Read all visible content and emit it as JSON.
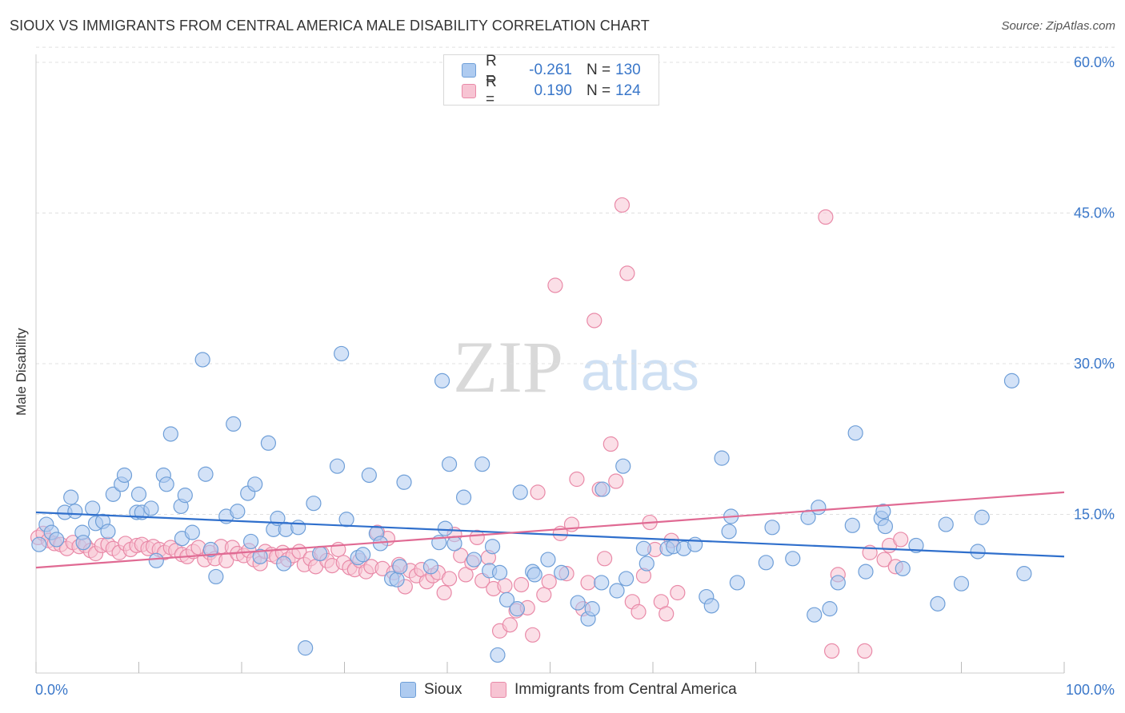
{
  "title": "SIOUX VS IMMIGRANTS FROM CENTRAL AMERICA MALE DISABILITY CORRELATION CHART",
  "source": "Source: ZipAtlas.com",
  "watermark": {
    "zip": "ZIP",
    "atlas": "atlas"
  },
  "legend": {
    "rows": [
      {
        "r_label": "R =",
        "r_value": "-0.261",
        "n_label": "N =",
        "n_value": "130"
      },
      {
        "r_label": "R =",
        "r_value": "0.190",
        "n_label": "N =",
        "n_value": "124"
      }
    ]
  },
  "bottom_legend": {
    "sioux": "Sioux",
    "immigrants": "Immigrants from Central America"
  },
  "colors": {
    "sioux_fill": "#aecbf0",
    "sioux_stroke": "#6f9fd8",
    "sioux_line": "#2f6fcc",
    "imm_fill": "#f7c4d3",
    "imm_stroke": "#e98aa8",
    "imm_line": "#e06a93",
    "tick_label": "#3a77c9",
    "grid": "#e0e0e0"
  },
  "chart_data": {
    "type": "scatter",
    "title": "SIOUX VS IMMIGRANTS FROM CENTRAL AMERICA MALE DISABILITY CORRELATION CHART",
    "xlabel": "",
    "ylabel": "Male Disability",
    "xlim": [
      0,
      100
    ],
    "ylim": [
      0,
      60
    ],
    "x_tick_labels": [
      "0.0%",
      "100.0%"
    ],
    "y_ticks": [
      15,
      30,
      45,
      60
    ],
    "y_tick_labels": [
      "15.0%",
      "30.0%",
      "45.0%",
      "60.0%"
    ],
    "grid": true,
    "legend_position": "top-center",
    "series": [
      {
        "name": "Sioux",
        "r": -0.261,
        "n": 130,
        "trend": [
          [
            0,
            15.2
          ],
          [
            100,
            10.8
          ]
        ],
        "points": [
          [
            0.3,
            12.0
          ],
          [
            1,
            14
          ],
          [
            1.5,
            13.2
          ],
          [
            2,
            12.5
          ],
          [
            2.8,
            15.2
          ],
          [
            3.4,
            16.7
          ],
          [
            3.8,
            15.3
          ],
          [
            4.5,
            13.2
          ],
          [
            4.6,
            12.2
          ],
          [
            5.5,
            15.6
          ],
          [
            5.8,
            14.1
          ],
          [
            6.5,
            14.3
          ],
          [
            7,
            13.3
          ],
          [
            7.5,
            17.0
          ],
          [
            8.3,
            18.0
          ],
          [
            8.6,
            18.9
          ],
          [
            9.8,
            15.2
          ],
          [
            10,
            17.0
          ],
          [
            10.3,
            15.2
          ],
          [
            11.2,
            15.6
          ],
          [
            11.7,
            10.4
          ],
          [
            12.4,
            18.9
          ],
          [
            12.7,
            18.0
          ],
          [
            13.1,
            23.0
          ],
          [
            14.1,
            15.8
          ],
          [
            14.5,
            16.9
          ],
          [
            14.2,
            12.6
          ],
          [
            15.2,
            13.2
          ],
          [
            16.2,
            30.4
          ],
          [
            16.5,
            19.0
          ],
          [
            17,
            11.5
          ],
          [
            17.5,
            8.8
          ],
          [
            18.5,
            14.8
          ],
          [
            19.2,
            24.0
          ],
          [
            19.6,
            15.3
          ],
          [
            20.6,
            17.1
          ],
          [
            20.9,
            12.3
          ],
          [
            21.3,
            18.0
          ],
          [
            21.8,
            10.8
          ],
          [
            22.6,
            22.1
          ],
          [
            23.1,
            13.5
          ],
          [
            23.5,
            14.6
          ],
          [
            24.3,
            13.5
          ],
          [
            24.1,
            10.1
          ],
          [
            25.5,
            13.7
          ],
          [
            26.2,
            1.7
          ],
          [
            27,
            16.1
          ],
          [
            27.6,
            11.1
          ],
          [
            29.3,
            19.8
          ],
          [
            29.7,
            31.0
          ],
          [
            30.2,
            14.5
          ],
          [
            31.3,
            10.7
          ],
          [
            31.8,
            11.0
          ],
          [
            32.4,
            18.9
          ],
          [
            33.1,
            13.1
          ],
          [
            33.5,
            12.1
          ],
          [
            34.6,
            8.6
          ],
          [
            35.1,
            8.5
          ],
          [
            35.4,
            9.8
          ],
          [
            35.8,
            18.2
          ],
          [
            38.4,
            9.8
          ],
          [
            39.2,
            12.2
          ],
          [
            39.5,
            28.3
          ],
          [
            39.8,
            13.6
          ],
          [
            40.2,
            20.0
          ],
          [
            40.7,
            12.1
          ],
          [
            41.6,
            16.7
          ],
          [
            42.6,
            10.5
          ],
          [
            43.4,
            20.0
          ],
          [
            44.1,
            9.4
          ],
          [
            44.4,
            11.8
          ],
          [
            44.9,
            1.0
          ],
          [
            45.1,
            9.2
          ],
          [
            45.8,
            6.5
          ],
          [
            46.8,
            5.6
          ],
          [
            47.1,
            17.2
          ],
          [
            48.3,
            9.3
          ],
          [
            48.5,
            9.0
          ],
          [
            49.8,
            10.5
          ],
          [
            51.1,
            9.2
          ],
          [
            52.7,
            6.2
          ],
          [
            53.7,
            4.6
          ],
          [
            54.1,
            5.6
          ],
          [
            55.0,
            8.2
          ],
          [
            55.1,
            17.5
          ],
          [
            56.5,
            7.4
          ],
          [
            57.1,
            19.8
          ],
          [
            57.4,
            8.6
          ],
          [
            59.1,
            11.6
          ],
          [
            59.4,
            10.1
          ],
          [
            61.4,
            11.6
          ],
          [
            62.0,
            11.8
          ],
          [
            63.0,
            11.6
          ],
          [
            64.1,
            12.0
          ],
          [
            65.2,
            6.8
          ],
          [
            65.7,
            5.9
          ],
          [
            66.7,
            20.6
          ],
          [
            67.4,
            13.3
          ],
          [
            67.6,
            14.8
          ],
          [
            68.2,
            8.2
          ],
          [
            71.0,
            10.2
          ],
          [
            71.6,
            13.7
          ],
          [
            73.6,
            10.6
          ],
          [
            75.1,
            14.7
          ],
          [
            75.7,
            5.0
          ],
          [
            76.1,
            15.7
          ],
          [
            77.2,
            5.6
          ],
          [
            78,
            8.2
          ],
          [
            79.4,
            13.9
          ],
          [
            79.7,
            23.1
          ],
          [
            80.7,
            9.3
          ],
          [
            82.2,
            14.6
          ],
          [
            82.4,
            15.3
          ],
          [
            82.6,
            13.8
          ],
          [
            84.3,
            9.6
          ],
          [
            85.6,
            11.9
          ],
          [
            87.7,
            6.1
          ],
          [
            88.5,
            14.0
          ],
          [
            90.0,
            8.1
          ],
          [
            91.6,
            11.3
          ],
          [
            92.0,
            14.7
          ],
          [
            94.9,
            28.3
          ],
          [
            96.1,
            9.1
          ]
        ]
      },
      {
        "name": "Immigrants from Central America",
        "r": 0.19,
        "n": 124,
        "trend": [
          [
            0,
            9.7
          ],
          [
            100,
            17.2
          ]
        ],
        "points": [
          [
            0.2,
            12.7
          ],
          [
            0.7,
            13.1
          ],
          [
            1.2,
            12.4
          ],
          [
            1.8,
            12.1
          ],
          [
            2.4,
            12.0
          ],
          [
            3.0,
            11.6
          ],
          [
            3.6,
            12.2
          ],
          [
            4.2,
            11.8
          ],
          [
            4.8,
            11.9
          ],
          [
            5.3,
            11.4
          ],
          [
            5.8,
            11.1
          ],
          [
            6.4,
            11.9
          ],
          [
            7.0,
            12.0
          ],
          [
            7.5,
            11.6
          ],
          [
            8.1,
            11.2
          ],
          [
            8.7,
            12.1
          ],
          [
            9.2,
            11.5
          ],
          [
            9.8,
            11.9
          ],
          [
            10.3,
            12.0
          ],
          [
            10.9,
            11.6
          ],
          [
            11.4,
            11.8
          ],
          [
            12.0,
            11.5
          ],
          [
            12.5,
            11.2
          ],
          [
            13.1,
            11.7
          ],
          [
            13.6,
            11.4
          ],
          [
            14.2,
            11.0
          ],
          [
            14.7,
            10.8
          ],
          [
            15.3,
            11.3
          ],
          [
            15.8,
            11.7
          ],
          [
            16.4,
            10.5
          ],
          [
            16.9,
            11.2
          ],
          [
            17.4,
            10.6
          ],
          [
            18.0,
            11.8
          ],
          [
            18.5,
            10.4
          ],
          [
            19.1,
            11.7
          ],
          [
            19.6,
            11.1
          ],
          [
            20.2,
            10.9
          ],
          [
            20.7,
            11.4
          ],
          [
            21.2,
            10.5
          ],
          [
            21.8,
            10.1
          ],
          [
            22.3,
            11.3
          ],
          [
            22.9,
            11.0
          ],
          [
            23.4,
            10.8
          ],
          [
            24.0,
            11.2
          ],
          [
            24.5,
            10.5
          ],
          [
            25.0,
            10.9
          ],
          [
            25.6,
            11.3
          ],
          [
            26.1,
            10.0
          ],
          [
            26.7,
            10.6
          ],
          [
            27.2,
            9.8
          ],
          [
            27.8,
            11.1
          ],
          [
            28.3,
            10.4
          ],
          [
            28.8,
            9.9
          ],
          [
            29.4,
            11.5
          ],
          [
            29.9,
            10.2
          ],
          [
            30.5,
            9.7
          ],
          [
            31.0,
            9.5
          ],
          [
            31.5,
            10.4
          ],
          [
            32.1,
            9.3
          ],
          [
            32.6,
            9.8
          ],
          [
            33.2,
            13.2
          ],
          [
            33.7,
            9.6
          ],
          [
            34.2,
            12.6
          ],
          [
            34.8,
            9.2
          ],
          [
            35.3,
            10.0
          ],
          [
            35.9,
            7.8
          ],
          [
            36.4,
            9.4
          ],
          [
            37.0,
            8.9
          ],
          [
            37.5,
            9.5
          ],
          [
            38.0,
            8.3
          ],
          [
            38.6,
            8.9
          ],
          [
            39.1,
            9.2
          ],
          [
            39.7,
            7.2
          ],
          [
            40.2,
            8.6
          ],
          [
            40.7,
            13.0
          ],
          [
            41.3,
            10.9
          ],
          [
            41.8,
            9.0
          ],
          [
            42.4,
            10.2
          ],
          [
            42.9,
            12.7
          ],
          [
            43.4,
            8.4
          ],
          [
            44.0,
            10.7
          ],
          [
            44.5,
            7.6
          ],
          [
            45.1,
            3.4
          ],
          [
            45.6,
            7.9
          ],
          [
            46.1,
            4.0
          ],
          [
            46.7,
            5.4
          ],
          [
            47.2,
            8.0
          ],
          [
            47.8,
            5.7
          ],
          [
            48.3,
            3.0
          ],
          [
            48.8,
            17.2
          ],
          [
            49.4,
            7.0
          ],
          [
            49.9,
            8.3
          ],
          [
            50.5,
            37.8
          ],
          [
            51.0,
            13.1
          ],
          [
            51.6,
            9.1
          ],
          [
            52.1,
            14.0
          ],
          [
            52.6,
            18.5
          ],
          [
            53.2,
            5.6
          ],
          [
            53.7,
            8.2
          ],
          [
            54.3,
            34.3
          ],
          [
            54.8,
            17.5
          ],
          [
            55.3,
            10.6
          ],
          [
            55.9,
            22.0
          ],
          [
            56.4,
            18.3
          ],
          [
            57.0,
            45.8
          ],
          [
            57.5,
            39.0
          ],
          [
            58.0,
            6.3
          ],
          [
            58.6,
            5.3
          ],
          [
            59.1,
            8.9
          ],
          [
            59.7,
            14.2
          ],
          [
            60.2,
            11.5
          ],
          [
            60.8,
            6.3
          ],
          [
            61.3,
            5.1
          ],
          [
            61.8,
            12.4
          ],
          [
            62.4,
            7.2
          ],
          [
            76.8,
            44.6
          ],
          [
            77.4,
            1.4
          ],
          [
            78.0,
            9.0
          ],
          [
            80.6,
            1.4
          ],
          [
            81.1,
            11.2
          ],
          [
            82.5,
            10.5
          ],
          [
            83.0,
            11.9
          ],
          [
            83.6,
            9.8
          ],
          [
            84.1,
            12.5
          ]
        ]
      }
    ]
  }
}
